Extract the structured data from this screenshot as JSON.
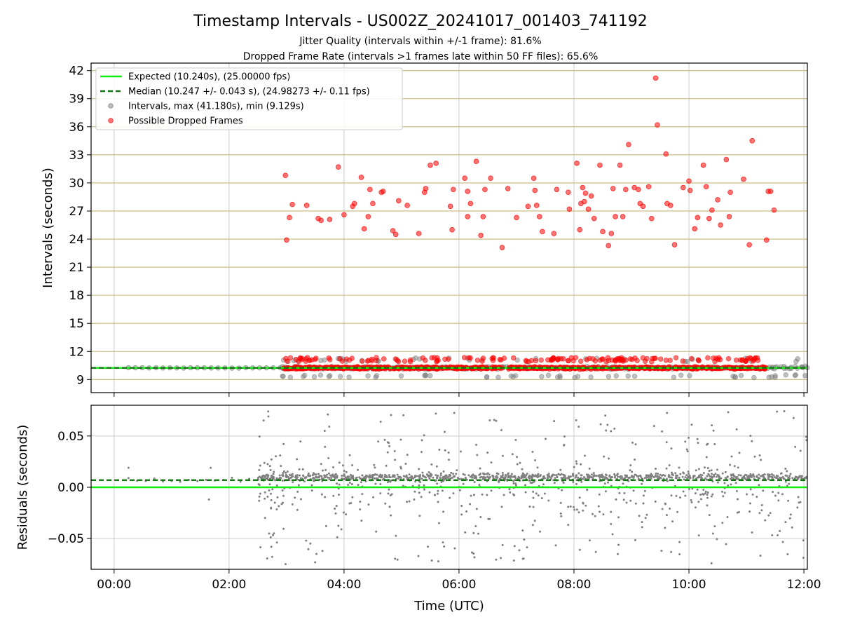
{
  "title": "Timestamp Intervals - US002Z_20241017_001403_741192",
  "subtitle_lines": [
    "Jitter Quality (intervals within +/-1 frame): 81.6%",
    "Dropped Frame Rate (intervals >1 frames late within 50 FF files): 65.6%"
  ],
  "colors": {
    "expected": "#11ee11",
    "median": "#117711",
    "intervals": "#808080",
    "dropped": "#ff0000",
    "hgrid_top": "#c8b878",
    "grid": "#cccccc"
  },
  "chart_data": [
    {
      "type": "scatter",
      "ylabel": "Intervals (seconds)",
      "xlim": [
        -0.4,
        12.06
      ],
      "ylim": [
        7.6,
        42.8
      ],
      "yticks": [
        9,
        12,
        15,
        18,
        21,
        24,
        27,
        30,
        33,
        36,
        39,
        42
      ],
      "ytick_labels": [
        "9",
        "12",
        "15",
        "18",
        "21",
        "24",
        "27",
        "30",
        "33",
        "36",
        "39",
        "42"
      ],
      "xticks": [
        0,
        2,
        4,
        6,
        8,
        10,
        12
      ],
      "reference_lines": [
        {
          "name": "expected",
          "y": 10.24,
          "style": "solid"
        },
        {
          "name": "median",
          "y": 10.247,
          "style": "dashed"
        }
      ],
      "legend": {
        "position": "top-left",
        "entries": [
          "Expected (10.240s), (25.00000 fps)",
          "Median (10.247 +/- 0.043 s), (24.98273 +/- 0.11 fps)",
          "Intervals, max (41.180s), min (9.129s)",
          "Possible Dropped Frames"
        ]
      },
      "dropped_frames": [
        [
          3.0,
          23.9
        ],
        [
          2.98,
          30.8
        ],
        [
          3.05,
          26.3
        ],
        [
          3.1,
          27.7
        ],
        [
          3.35,
          27.6
        ],
        [
          3.55,
          26.2
        ],
        [
          3.6,
          26.0
        ],
        [
          3.75,
          26.1
        ],
        [
          3.9,
          31.7
        ],
        [
          4.0,
          26.6
        ],
        [
          4.15,
          27.5
        ],
        [
          4.18,
          27.8
        ],
        [
          4.3,
          30.6
        ],
        [
          4.35,
          25.1
        ],
        [
          4.42,
          26.4
        ],
        [
          4.45,
          29.3
        ],
        [
          4.5,
          27.8
        ],
        [
          4.65,
          29.0
        ],
        [
          4.68,
          29.1
        ],
        [
          4.85,
          24.9
        ],
        [
          4.9,
          24.5
        ],
        [
          4.95,
          28.1
        ],
        [
          5.1,
          27.6
        ],
        [
          5.3,
          24.6
        ],
        [
          5.4,
          29.0
        ],
        [
          5.42,
          29.4
        ],
        [
          5.5,
          31.9
        ],
        [
          5.6,
          32.1
        ],
        [
          5.85,
          27.5
        ],
        [
          5.88,
          25.0
        ],
        [
          5.9,
          29.3
        ],
        [
          6.1,
          30.5
        ],
        [
          6.15,
          26.4
        ],
        [
          6.15,
          29.1
        ],
        [
          6.2,
          27.8
        ],
        [
          6.3,
          32.3
        ],
        [
          6.38,
          24.4
        ],
        [
          6.42,
          26.4
        ],
        [
          6.45,
          29.3
        ],
        [
          6.55,
          30.5
        ],
        [
          6.75,
          23.1
        ],
        [
          6.85,
          29.4
        ],
        [
          7.0,
          26.3
        ],
        [
          7.2,
          27.5
        ],
        [
          7.3,
          30.5
        ],
        [
          7.32,
          29.2
        ],
        [
          7.35,
          27.6
        ],
        [
          7.4,
          26.4
        ],
        [
          7.45,
          24.8
        ],
        [
          7.65,
          24.6
        ],
        [
          7.7,
          29.3
        ],
        [
          7.9,
          29.0
        ],
        [
          7.92,
          27.2
        ],
        [
          8.05,
          32.1
        ],
        [
          8.1,
          25.0
        ],
        [
          8.12,
          27.8
        ],
        [
          8.15,
          29.5
        ],
        [
          8.18,
          28.0
        ],
        [
          8.2,
          28.9
        ],
        [
          8.25,
          27.2
        ],
        [
          8.3,
          28.6
        ],
        [
          8.35,
          26.2
        ],
        [
          8.45,
          31.9
        ],
        [
          8.5,
          24.8
        ],
        [
          8.6,
          23.3
        ],
        [
          8.65,
          24.6
        ],
        [
          8.68,
          29.4
        ],
        [
          8.72,
          26.4
        ],
        [
          8.8,
          31.9
        ],
        [
          8.85,
          26.4
        ],
        [
          8.9,
          29.3
        ],
        [
          8.95,
          34.1
        ],
        [
          9.05,
          29.5
        ],
        [
          9.12,
          29.3
        ],
        [
          9.15,
          27.8
        ],
        [
          9.2,
          27.5
        ],
        [
          9.3,
          29.6
        ],
        [
          9.35,
          26.2
        ],
        [
          9.42,
          41.2
        ],
        [
          9.45,
          36.2
        ],
        [
          9.6,
          33.1
        ],
        [
          9.62,
          27.8
        ],
        [
          9.68,
          27.6
        ],
        [
          9.75,
          23.4
        ],
        [
          9.9,
          29.5
        ],
        [
          10.0,
          30.2
        ],
        [
          10.02,
          29.2
        ],
        [
          10.1,
          25.1
        ],
        [
          10.15,
          26.3
        ],
        [
          10.25,
          31.9
        ],
        [
          10.3,
          29.6
        ],
        [
          10.35,
          26.2
        ],
        [
          10.4,
          27.1
        ],
        [
          10.5,
          28.2
        ],
        [
          10.55,
          25.5
        ],
        [
          10.65,
          32.5
        ],
        [
          10.7,
          26.4
        ],
        [
          10.72,
          29.0
        ],
        [
          10.95,
          30.4
        ],
        [
          11.05,
          23.4
        ],
        [
          11.1,
          34.5
        ],
        [
          11.35,
          23.9
        ],
        [
          11.38,
          29.1
        ],
        [
          11.42,
          29.1
        ],
        [
          11.48,
          27.1
        ]
      ]
    },
    {
      "type": "scatter",
      "xlabel": "Time (UTC)",
      "ylabel": "Residuals (seconds)",
      "xlim": [
        -0.4,
        12.06
      ],
      "ylim": [
        -0.08,
        0.08
      ],
      "yticks": [
        -0.05,
        0.0,
        0.05
      ],
      "ytick_labels": [
        "−0.05",
        "0.00",
        "0.05"
      ],
      "xticks": [
        0,
        2,
        4,
        6,
        8,
        10,
        12
      ],
      "xtick_labels": [
        "00:00",
        "02:00",
        "04:00",
        "06:00",
        "08:00",
        "10:00",
        "12:00"
      ],
      "reference_lines": [
        {
          "name": "expected",
          "y": 0.0,
          "style": "solid"
        },
        {
          "name": "median",
          "y": 0.007,
          "style": "dashed"
        }
      ]
    }
  ]
}
